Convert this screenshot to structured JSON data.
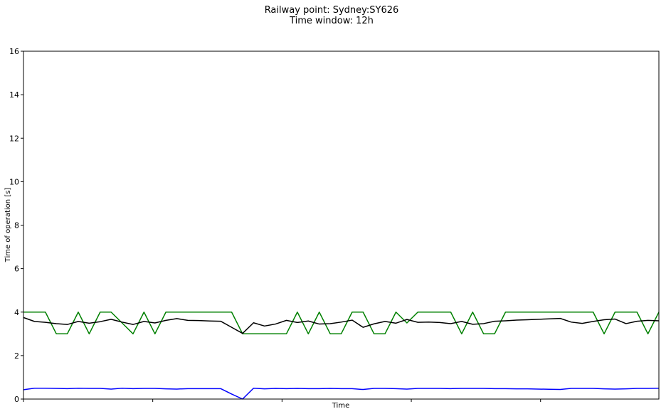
{
  "chart_data": {
    "type": "line",
    "title": "Railway point: Sydney:SY626",
    "subtitle": "Time window: 12h",
    "xlabel": "Time",
    "ylabel": "Time of operation [s]",
    "ylim": [
      0,
      16
    ],
    "yticks": [
      "0",
      "2",
      "4",
      "6",
      "8",
      "10",
      "12",
      "14",
      "16"
    ],
    "xlim": [
      0,
      58
    ],
    "xticks": [
      0,
      11.8,
      23.6,
      35.4,
      47.2
    ],
    "grid": false,
    "x": [
      0,
      1,
      2,
      3,
      4,
      5,
      6,
      7,
      8,
      9,
      10,
      11,
      12,
      13,
      14,
      15,
      16,
      17,
      18,
      19,
      20,
      21,
      22,
      23,
      24,
      25,
      26,
      27,
      28,
      29,
      30,
      31,
      32,
      33,
      34,
      35,
      36,
      37,
      38,
      39,
      40,
      41,
      42,
      43,
      44,
      45,
      46,
      47,
      48,
      49,
      50,
      51,
      52,
      53,
      54,
      55,
      56,
      57,
      58
    ],
    "series": [
      {
        "color": "#008000",
        "values": [
          4,
          4,
          4,
          3,
          3,
          4,
          3,
          4,
          4,
          3.5,
          3,
          4,
          3,
          4,
          4,
          4,
          4,
          4,
          4,
          4,
          3,
          3,
          3,
          3,
          3,
          4,
          3,
          4,
          3,
          3,
          4,
          4,
          3,
          3,
          4,
          3.5,
          4,
          4,
          4,
          4,
          3,
          4,
          3,
          3,
          4,
          4,
          4,
          4,
          4,
          4,
          4,
          4,
          4,
          3,
          4,
          4,
          4,
          3,
          4
        ]
      },
      {
        "color": "#000000",
        "values": [
          3.75,
          3.57,
          3.53,
          3.47,
          3.43,
          3.57,
          3.49,
          3.56,
          3.67,
          3.54,
          3.43,
          3.57,
          3.5,
          3.62,
          3.7,
          3.62,
          3.61,
          3.59,
          3.58,
          3.3,
          3.02,
          3.51,
          3.36,
          3.45,
          3.62,
          3.52,
          3.59,
          3.45,
          3.47,
          3.54,
          3.63,
          3.3,
          3.46,
          3.57,
          3.49,
          3.66,
          3.53,
          3.54,
          3.52,
          3.47,
          3.57,
          3.44,
          3.47,
          3.58,
          3.6,
          3.63,
          3.65,
          3.67,
          3.69,
          3.71,
          3.54,
          3.48,
          3.57,
          3.65,
          3.68,
          3.47,
          3.58,
          3.62,
          3.6
        ]
      },
      {
        "color": "#0000ff",
        "values": [
          0.43,
          0.5,
          0.5,
          0.49,
          0.48,
          0.5,
          0.49,
          0.49,
          0.46,
          0.5,
          0.48,
          0.49,
          0.49,
          0.47,
          0.46,
          0.48,
          0.48,
          0.48,
          0.48,
          0.23,
          0.0,
          0.5,
          0.47,
          0.49,
          0.48,
          0.49,
          0.48,
          0.48,
          0.49,
          0.48,
          0.48,
          0.44,
          0.49,
          0.49,
          0.48,
          0.46,
          0.49,
          0.49,
          0.49,
          0.48,
          0.49,
          0.49,
          0.49,
          0.48,
          0.48,
          0.47,
          0.47,
          0.46,
          0.45,
          0.44,
          0.49,
          0.49,
          0.49,
          0.47,
          0.46,
          0.47,
          0.49,
          0.49,
          0.5
        ]
      }
    ]
  }
}
